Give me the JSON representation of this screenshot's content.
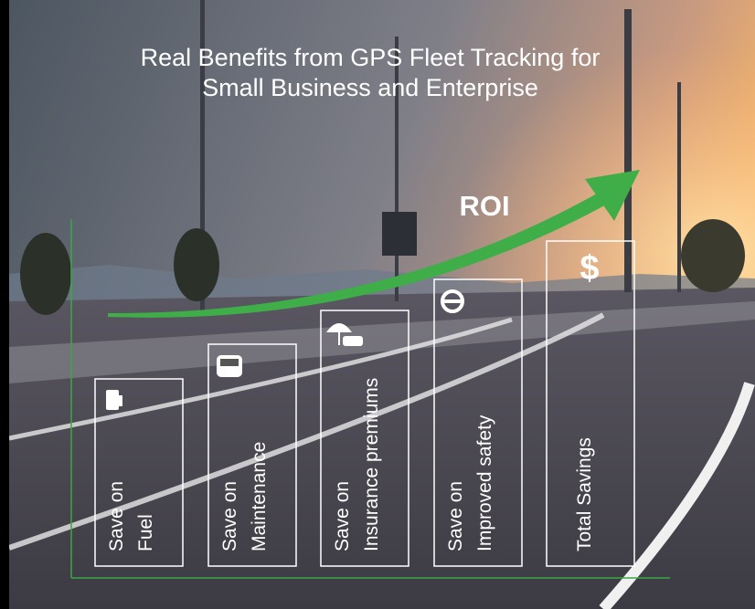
{
  "header": {
    "title": [
      "Real Benefits from GPS Fleet Tracking for",
      "Small Business and Enterprise"
    ]
  },
  "arrow": {
    "label": "ROI"
  },
  "items": [
    {
      "lines": [
        "Save on",
        "Fuel"
      ]
    },
    {
      "lines": [
        "Save on",
        "Maintenance"
      ]
    },
    {
      "lines": [
        "Save on",
        "Insurance premiums"
      ]
    },
    {
      "lines": [
        "Save on",
        "Improved safety"
      ]
    },
    {
      "icon_text": "$",
      "lines": [
        "Total Savings"
      ]
    }
  ]
}
